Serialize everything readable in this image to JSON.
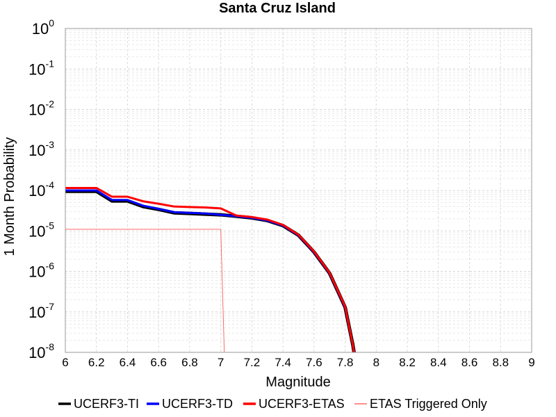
{
  "chart_data": {
    "type": "line",
    "title": "Santa Cruz Island",
    "xlabel": "Magnitude",
    "ylabel": "1 Month Probability",
    "xlim": [
      6,
      9
    ],
    "ylim": [
      1e-08,
      1
    ],
    "yscale": "log",
    "grid": true,
    "legend_position": "bottom",
    "x_ticks": [
      "6",
      "6.2",
      "6.4",
      "6.6",
      "6.8",
      "7",
      "7.2",
      "7.4",
      "7.6",
      "7.8",
      "8",
      "8.2",
      "8.4",
      "8.6",
      "8.8",
      "9"
    ],
    "y_ticks": [
      {
        "value": 1,
        "base": "10",
        "exp": "0"
      },
      {
        "value": 0.1,
        "base": "10",
        "exp": "-1"
      },
      {
        "value": 0.01,
        "base": "10",
        "exp": "-2"
      },
      {
        "value": 0.001,
        "base": "10",
        "exp": "-3"
      },
      {
        "value": 0.0001,
        "base": "10",
        "exp": "-4"
      },
      {
        "value": 1e-05,
        "base": "10",
        "exp": "-5"
      },
      {
        "value": 1e-06,
        "base": "10",
        "exp": "-6"
      },
      {
        "value": 1e-07,
        "base": "10",
        "exp": "-7"
      },
      {
        "value": 1e-08,
        "base": "10",
        "exp": "-8"
      }
    ],
    "series": [
      {
        "name": "UCERF3-TI",
        "color": "#000000",
        "x": [
          6.0,
          6.2,
          6.3,
          6.4,
          6.5,
          6.6,
          6.7,
          6.8,
          6.9,
          7.0,
          7.1,
          7.2,
          7.3,
          7.4,
          7.5,
          7.6,
          7.7,
          7.8,
          7.85,
          7.9
        ],
        "y": [
          9.5e-05,
          9.5e-05,
          5.5e-05,
          5.5e-05,
          4e-05,
          3.4e-05,
          2.8e-05,
          2.7e-05,
          2.6e-05,
          2.5e-05,
          2.3e-05,
          2.1e-05,
          1.8e-05,
          1.35e-05,
          7.8e-06,
          3e-06,
          9e-07,
          1.3e-07,
          1.5e-08,
          1e-09
        ]
      },
      {
        "name": "UCERF3-TD",
        "color": "#0000ff",
        "x": [
          6.0,
          6.2,
          6.3,
          6.4,
          6.5,
          6.6,
          6.7,
          6.8,
          6.9,
          7.0,
          7.1,
          7.2,
          7.3,
          7.4,
          7.5,
          7.6,
          7.7,
          7.8,
          7.85,
          7.9
        ],
        "y": [
          0.0001,
          0.0001,
          5.8e-05,
          5.8e-05,
          4.2e-05,
          3.5e-05,
          2.9e-05,
          2.8e-05,
          2.7e-05,
          2.5e-05,
          2.3e-05,
          2.1e-05,
          1.8e-05,
          1.35e-05,
          7.8e-06,
          3e-06,
          9e-07,
          1.3e-07,
          1.5e-08,
          1e-09
        ]
      },
      {
        "name": "UCERF3-ETAS",
        "color": "#ff0000",
        "x": [
          6.0,
          6.2,
          6.3,
          6.4,
          6.5,
          6.6,
          6.7,
          6.8,
          6.9,
          7.0,
          7.1,
          7.2,
          7.3,
          7.4,
          7.5,
          7.6,
          7.7,
          7.8,
          7.85,
          7.9
        ],
        "y": [
          0.000115,
          0.000115,
          7e-05,
          7e-05,
          5.4e-05,
          4.7e-05,
          4e-05,
          3.9e-05,
          3.8e-05,
          3.6e-05,
          2.4e-05,
          2.2e-05,
          1.9e-05,
          1.4e-05,
          8e-06,
          3.1e-06,
          9.2e-07,
          1.35e-07,
          1.5e-08,
          1e-09
        ]
      },
      {
        "name": "ETAS Triggered Only",
        "color": "#ff6a6a",
        "x": [
          6.0,
          7.0,
          7.03
        ],
        "y": [
          1.1e-05,
          1.1e-05,
          1e-09
        ]
      }
    ]
  }
}
